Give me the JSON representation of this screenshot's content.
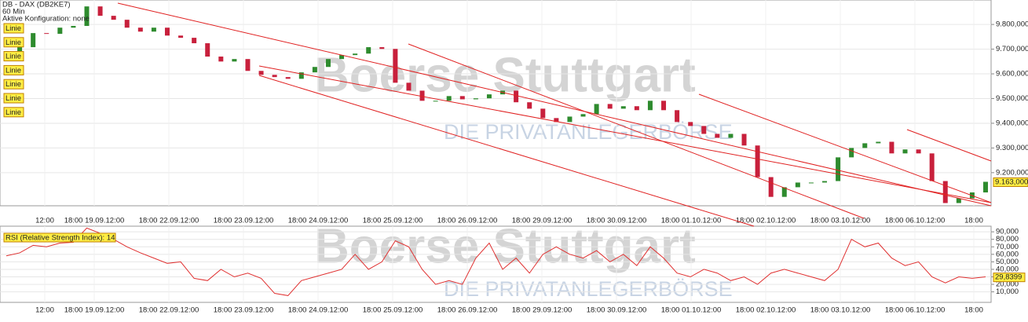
{
  "header": {
    "symbol": "DB - DAX (DB2KE7)",
    "interval": "60 Min",
    "config": "Aktive Konfiguration: none"
  },
  "toolbar": {
    "buttons": [
      "Linie",
      "Linie",
      "Linie",
      "Linie",
      "Linie",
      "Linie",
      "Linie"
    ]
  },
  "watermark": {
    "logo": "Boerse Stuttgart",
    "tagline": "DIE PRIVATANLEGERBÖRSE"
  },
  "chart_data": [
    {
      "type": "candlestick",
      "up_color": "#2e8b2e",
      "down_color": "#c8203c",
      "open": [
        9680,
        9692,
        9708,
        9765,
        9762,
        9787,
        9794,
        9873,
        9835,
        9819,
        9787,
        9771,
        9787,
        9755,
        9746,
        9724,
        9670,
        9650,
        9660,
        9612,
        9596,
        9587,
        9580,
        9606,
        9628,
        9660,
        9676,
        9682,
        9708,
        9701,
        9564,
        9532,
        9491,
        9491,
        9510,
        9497,
        9501,
        9517,
        9532,
        9485,
        9459,
        9421,
        9405,
        9427,
        9437,
        9478,
        9459,
        9469,
        9453,
        9491,
        9453,
        9405,
        9389,
        9357,
        9341,
        9357,
        9310,
        9182,
        9102,
        9141,
        9160,
        9160,
        9166,
        9262,
        9300,
        9319,
        9325,
        9278,
        9294,
        9278,
        9166,
        9077,
        9096,
        9120
      ],
      "close": [
        9692,
        9708,
        9765,
        9762,
        9787,
        9794,
        9873,
        9835,
        9819,
        9787,
        9771,
        9787,
        9755,
        9746,
        9724,
        9670,
        9650,
        9660,
        9612,
        9596,
        9587,
        9580,
        9606,
        9628,
        9660,
        9676,
        9682,
        9708,
        9701,
        9564,
        9532,
        9491,
        9491,
        9510,
        9497,
        9501,
        9517,
        9532,
        9485,
        9459,
        9421,
        9405,
        9427,
        9437,
        9478,
        9459,
        9469,
        9453,
        9491,
        9453,
        9405,
        9389,
        9357,
        9341,
        9357,
        9310,
        9182,
        9102,
        9141,
        9160,
        9160,
        9166,
        9262,
        9300,
        9319,
        9325,
        9278,
        9294,
        9278,
        9166,
        9077,
        9096,
        9120,
        9163
      ],
      "ylim": [
        9066,
        9899
      ],
      "yticks": [
        {
          "value": 9200,
          "label": "9.200,000"
        },
        {
          "value": 9300,
          "label": "9.300,000"
        },
        {
          "value": 9400,
          "label": "9.400,000"
        },
        {
          "value": 9500,
          "label": "9.500,000"
        },
        {
          "value": 9600,
          "label": "9.600,000"
        },
        {
          "value": 9700,
          "label": "9.700,000"
        },
        {
          "value": 9800,
          "label": "9.800,000"
        }
      ],
      "last_price": {
        "value": 9163,
        "label": "9.163,000"
      },
      "xtick_labels": [
        "12:00",
        "18:00 19.09.12:00",
        "18:00 22.09.12:00",
        "18:00 23.09.12:00",
        "18:00 24.09.12:00",
        "18:00 25.09.12:00",
        "18:00 26.09.12:00",
        "18:00 29.09.12:00",
        "18:00 30.09.12:00",
        "18:00 01.10.12:00",
        "18:00 02.10.12:00",
        "18:00 03.10.12:00",
        "18:00 06.10.12:00",
        "18:00"
      ],
      "grid": true
    },
    {
      "type": "line",
      "title": "RSI (Relative Strength Index): 14",
      "color": "#e03030",
      "values": [
        58,
        62,
        72,
        70,
        75,
        76,
        95,
        88,
        80,
        70,
        62,
        55,
        48,
        50,
        28,
        25,
        40,
        30,
        35,
        28,
        8,
        5,
        25,
        30,
        35,
        40,
        60,
        40,
        50,
        78,
        70,
        40,
        20,
        25,
        20,
        55,
        75,
        40,
        55,
        35,
        60,
        70,
        60,
        55,
        65,
        50,
        60,
        45,
        70,
        55,
        35,
        30,
        40,
        35,
        25,
        30,
        20,
        35,
        40,
        35,
        30,
        25,
        40,
        80,
        70,
        75,
        55,
        45,
        50,
        30,
        22,
        30,
        28,
        30
      ],
      "ylim": [
        -4,
        97.5
      ],
      "yticks": [
        {
          "value": 10,
          "label": "10,000"
        },
        {
          "value": 20,
          "label": "20,000"
        },
        {
          "value": 30,
          "label": "30,000"
        },
        {
          "value": 40,
          "label": "40,000"
        },
        {
          "value": 50,
          "label": "50,000"
        },
        {
          "value": 60,
          "label": "60,000"
        },
        {
          "value": 70,
          "label": "70,000"
        },
        {
          "value": 80,
          "label": "80,000"
        },
        {
          "value": 90,
          "label": "90,000"
        }
      ],
      "last_value": {
        "value": 29.8399,
        "label": "29,8399"
      },
      "xtick_labels": [
        "12:00",
        "18:00 19.09.12:00",
        "18:00 22.09.12:00",
        "18:00 23.09.12:00",
        "18:00 24.09.12:00",
        "18:00 25.09.12:00",
        "18:00 26.09.12:00",
        "18:00 29.09.12:00",
        "18:00 30.09.12:00",
        "18:00 01.10.12:00",
        "18:00 02.10.12:00",
        "18:00 03.10.12:00",
        "18:00 06.10.12:00",
        "18:00"
      ],
      "grid": true
    }
  ]
}
